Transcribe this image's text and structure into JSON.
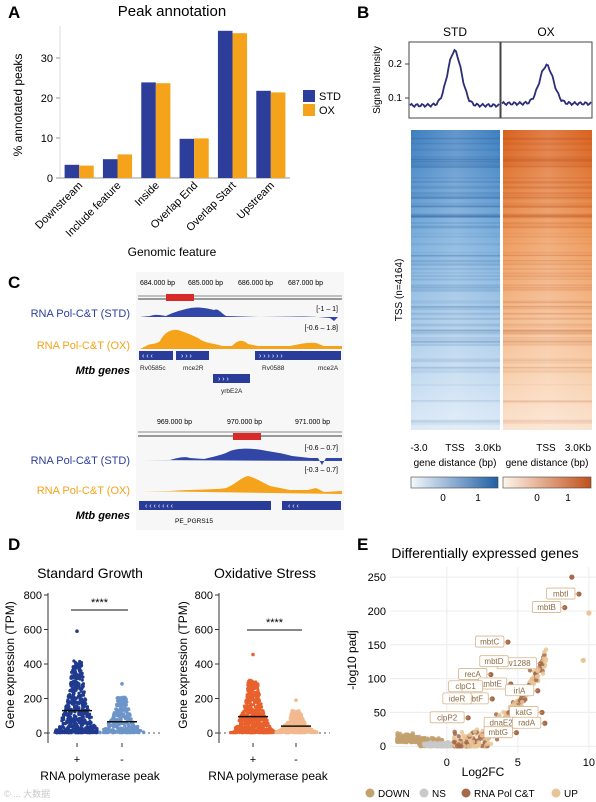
{
  "panels": {
    "A": {
      "letter": "A",
      "title": "Peak annotation",
      "ylabel": "% annotated peaks",
      "xlabel": "Genomic feature",
      "yticks": [
        "0",
        "10",
        "20",
        "30"
      ],
      "legend": [
        "STD",
        "OX"
      ]
    },
    "B": {
      "letter": "B",
      "col_titles": [
        "STD",
        "OX"
      ],
      "ylabel_profile": "Signal Intensity",
      "profile_yticks": [
        "0.1",
        "0.2"
      ],
      "heat_ylabel": "TSS (n=4164)",
      "x_ticks": [
        "-3.0",
        "TSS",
        "3.0Kb"
      ],
      "xlabel": "gene distance (bp)",
      "cbar_std_ticks": [
        "0",
        "1"
      ],
      "cbar_ox_ticks": [
        "0",
        "1"
      ]
    },
    "C": {
      "letter": "C",
      "track_std": "RNA Pol-C&T (STD)",
      "track_ox": "RNA Pol-C&T (OX)",
      "genes_label": "Mtb genes",
      "locus1": {
        "coords": [
          "684.000 bp",
          "685.000 bp",
          "686.000 bp",
          "687.000 bp"
        ],
        "range_std": "[-1 – 1]",
        "range_ox": "[-0.6 – 1.8]",
        "genes": [
          "Rv0585c",
          "mce2R",
          "Rv0588",
          "mce2A",
          "yrbE2A"
        ]
      },
      "locus2": {
        "coords": [
          "969.000 bp",
          "970.000 bp",
          "971.000 bp"
        ],
        "range_std": "[-0.6 – 0.7]",
        "range_ox": "[-0.3 – 0.7]",
        "genes": [
          "PE_PGRS15"
        ]
      }
    },
    "D": {
      "letter": "D",
      "titles": [
        "Standard Growth",
        "Oxidative Stress"
      ],
      "ylabel": "Gene expression (TPM)",
      "xlabel": "RNA polymerase peak",
      "yticks": [
        "0",
        "200",
        "400",
        "600",
        "800"
      ],
      "groups": [
        "+",
        "-"
      ],
      "sig": "****"
    },
    "E": {
      "letter": "E",
      "title": "Differentially expressed genes",
      "xlabel": "Log2FC",
      "ylabel": "-log10 padj",
      "xticks": [
        "0",
        "5",
        "10"
      ],
      "yticks": [
        "0",
        "50",
        "100",
        "150",
        "200",
        "250"
      ],
      "legend": [
        "DOWN",
        "NS",
        "RNA Pol C&T",
        "UP"
      ],
      "gene_labels": [
        "mbtI",
        "mbtB",
        "mbtC",
        "Rv1288",
        "mbtD",
        "recA",
        "mbtE",
        "clpC1",
        "mbtF",
        "irlA",
        "ideR",
        "katG",
        "clpP2",
        "dnaE2",
        "radA",
        "mbtG"
      ]
    },
    "watermark": "© ... 大数据"
  },
  "chart_data": [
    {
      "panel": "A",
      "type": "bar",
      "title": "Peak annotation",
      "xlabel": "Genomic feature",
      "ylabel": "% annotated peaks",
      "categories": [
        "Downstream",
        "Include feature",
        "Inside",
        "Overlap End",
        "Overlap Start",
        "Upstream"
      ],
      "series": [
        {
          "name": "STD",
          "values": [
            3.3,
            4.7,
            23.9,
            9.8,
            36.8,
            21.8
          ]
        },
        {
          "name": "OX",
          "values": [
            3.1,
            5.9,
            23.7,
            9.9,
            36.2,
            21.4
          ]
        }
      ],
      "ylim": [
        0,
        38
      ],
      "colors": {
        "STD": "#2c3e9a",
        "OX": "#f5a31a"
      },
      "legend": "right"
    },
    {
      "panel": "B",
      "type": "line",
      "title": "",
      "ylabel": "Signal Intensity",
      "series": [
        {
          "name": "STD",
          "peak": 0.235,
          "base": 0.085
        },
        {
          "name": "OX",
          "peak": 0.195,
          "base": 0.09
        }
      ],
      "ylim": [
        0.05,
        0.26
      ]
    },
    {
      "panel": "D",
      "type": "scatter",
      "titles": [
        "Standard Growth",
        "Oxidative Stress"
      ],
      "ylabel": "Gene expression (TPM)",
      "xlabel": "RNA polymerase peak",
      "ylim": [
        0,
        800
      ],
      "groups": [
        {
          "name": "Standard Growth +",
          "median": 130,
          "max": 590,
          "color": "#1f3a8f"
        },
        {
          "name": "Standard Growth -",
          "median": 65,
          "max": 285,
          "color": "#6d95c9"
        },
        {
          "name": "Oxidative Stress +",
          "median": 95,
          "max": 455,
          "color": "#e8602c"
        },
        {
          "name": "Oxidative Stress -",
          "median": 40,
          "max": 190,
          "color": "#f2b98e"
        }
      ]
    },
    {
      "panel": "E",
      "type": "scatter",
      "title": "Differentially expressed genes",
      "xlabel": "Log2FC",
      "ylabel": "-log10 padj",
      "xlim": [
        -4,
        10.5
      ],
      "ylim": [
        -10,
        265
      ],
      "labeled_points": [
        {
          "gene": "mbtI",
          "x": 9.3,
          "y": 225
        },
        {
          "gene": "mbtB",
          "x": 8.3,
          "y": 205
        },
        {
          "gene": "mbtC",
          "x": 4.3,
          "y": 154
        },
        {
          "gene": "Rv1288",
          "x": 6.6,
          "y": 122
        },
        {
          "gene": "mbtD",
          "x": 4.6,
          "y": 125
        },
        {
          "gene": "recA",
          "x": 3.1,
          "y": 106
        },
        {
          "gene": "mbtE",
          "x": 4.5,
          "y": 92
        },
        {
          "gene": "clpC1",
          "x": 2.8,
          "y": 88
        },
        {
          "gene": "mbtF",
          "x": 3.2,
          "y": 70
        },
        {
          "gene": "irlA",
          "x": 6.4,
          "y": 82
        },
        {
          "gene": "ideR",
          "x": 2.0,
          "y": 70
        },
        {
          "gene": "katG",
          "x": 6.7,
          "y": 50
        },
        {
          "gene": "clpP2",
          "x": 1.5,
          "y": 42
        },
        {
          "gene": "dnaE2",
          "x": 5.3,
          "y": 34
        },
        {
          "gene": "radA",
          "x": 6.9,
          "y": 34
        },
        {
          "gene": "mbtG",
          "x": 4.9,
          "y": 20
        }
      ],
      "highlight": [
        {
          "x": 8.8,
          "y": 250
        },
        {
          "x": 10.0,
          "y": 197
        },
        {
          "x": 9.6,
          "y": 127
        }
      ],
      "colors": {
        "DOWN": "#c3a16f",
        "NS": "#c9c9c9",
        "RNA Pol C&T": "#a4694b",
        "UP": "#e7c596"
      }
    }
  ]
}
